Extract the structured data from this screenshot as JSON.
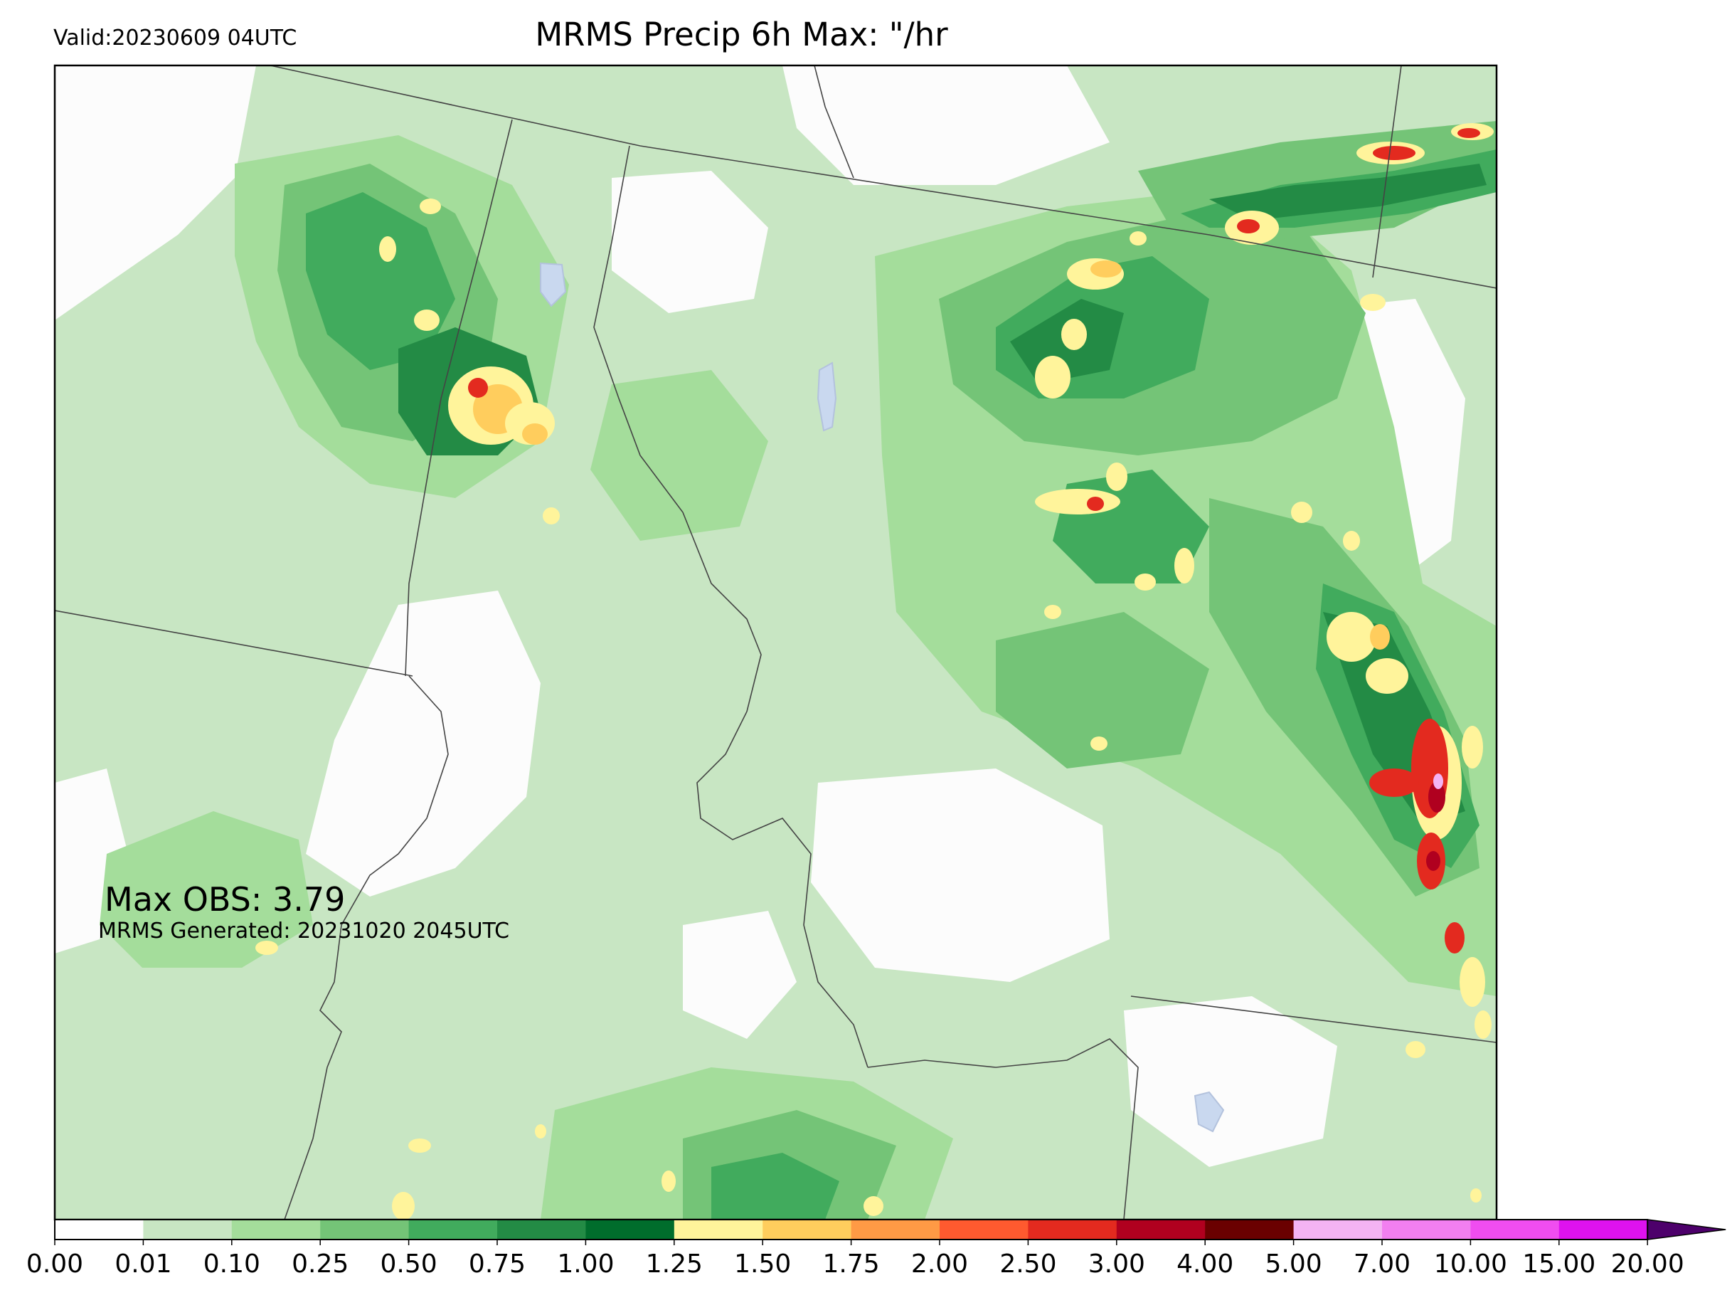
{
  "header": {
    "valid": "Valid:20230609 04UTC",
    "title": "MRMS Precip 6h Max: \"/hr"
  },
  "overlay": {
    "max_obs": "Max OBS: 3.79",
    "generated": "MRMS Generated: 20231020 2045UTC"
  },
  "colorbar": {
    "ticks": [
      "0.00",
      "0.01",
      "0.10",
      "0.25",
      "0.50",
      "0.75",
      "1.00",
      "1.25",
      "1.50",
      "1.75",
      "2.00",
      "2.50",
      "3.00",
      "4.00",
      "5.00",
      "7.00",
      "10.00",
      "15.00",
      "20.00"
    ],
    "colors": [
      "#ffffff",
      "#c8e6c3",
      "#a4dd9b",
      "#74c477",
      "#41ab5d",
      "#238b45",
      "#006d2c",
      "#fff49b",
      "#ffcd5d",
      "#ff9a45",
      "#ff5a2f",
      "#e32a1f",
      "#b0001f",
      "#6a0000",
      "#f4b3f3",
      "#f27ff0",
      "#f04df0",
      "#de12ef",
      "#9a09d6"
    ],
    "extend_color": "#4d006b"
  },
  "map": {
    "precip_colors": {
      "light": "#c8e6c3",
      "low": "#a4dd9b",
      "moderate": "#74c477",
      "mod_high": "#41ab5d",
      "high": "#238b45",
      "very_high": "#006d2c",
      "yellow": "#fff49b",
      "orange": "#ffcd5d",
      "red": "#e32a1f",
      "dark_red": "#b0001f",
      "pink": "#f4b3f3"
    },
    "border_color": "#444444",
    "water_color": "#c9d8ef"
  }
}
